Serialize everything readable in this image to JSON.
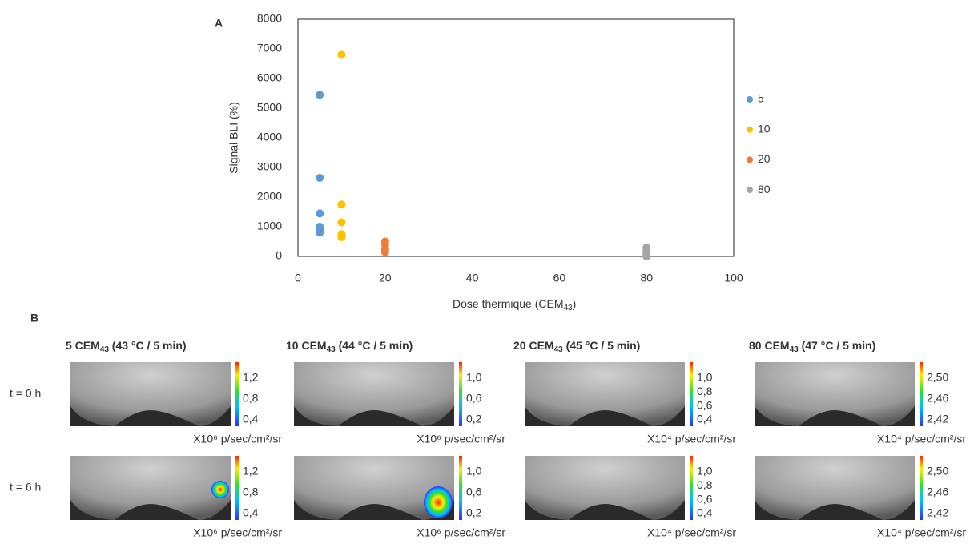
{
  "panel_labels": [
    "A",
    "B"
  ],
  "chart_data": {
    "type": "scatter",
    "x_label": [
      "Dose thermique (CEM",
      "43",
      ")"
    ],
    "y_label": "Signal BLI (%)",
    "xlim": [
      0,
      100
    ],
    "xticks": [
      0,
      20,
      40,
      60,
      80,
      100
    ],
    "ylim": [
      0,
      8000
    ],
    "yticks": [
      0,
      1000,
      2000,
      3000,
      4000,
      5000,
      6000,
      7000,
      8000
    ],
    "legend": "right",
    "series": [
      {
        "name": "5",
        "color": "#5b9bd5",
        "x": [
          5,
          5,
          5,
          5,
          5,
          5
        ],
        "values": [
          5450,
          2650,
          1450,
          1000,
          900,
          800
        ]
      },
      {
        "name": "10",
        "color": "#ffc000",
        "x": [
          10,
          10,
          10,
          10,
          10
        ],
        "values": [
          6800,
          1750,
          1150,
          750,
          650
        ]
      },
      {
        "name": "20",
        "color": "#ed7d31",
        "x": [
          20,
          20,
          20,
          20
        ],
        "values": [
          500,
          400,
          250,
          150
        ]
      },
      {
        "name": "80",
        "color": "#a5a5a5",
        "x": [
          80,
          80,
          80,
          80,
          80
        ],
        "values": [
          300,
          200,
          100,
          50,
          0
        ]
      }
    ]
  },
  "panel_b": {
    "rows": [
      "t = 0 h",
      "t = 6 h"
    ],
    "columns": [
      {
        "title": [
          "5 CEM",
          "43",
          " (43 °C / 5 min)"
        ],
        "scale": [
          "1,2",
          "0,8",
          "0,4"
        ],
        "unit": "X10⁶ p/sec/cm²/sr"
      },
      {
        "title": [
          "10 CEM",
          "43",
          " (44 °C / 5 min)"
        ],
        "scale": [
          "1,0",
          "0,6",
          "0,2"
        ],
        "unit": "X10⁶ p/sec/cm²/sr"
      },
      {
        "title": [
          "20 CEM",
          "43",
          " (45 °C / 5 min)"
        ],
        "scale": [
          "1,0",
          "0,8",
          "0,6",
          "0,4"
        ],
        "unit": "X10⁴ p/sec/cm²/sr"
      },
      {
        "title": [
          "80 CEM",
          "43",
          " (47 °C / 5 min)"
        ],
        "scale": [
          "2,50",
          "2,46",
          "2,42"
        ],
        "unit": "X10⁴ p/sec/cm²/sr"
      }
    ]
  }
}
